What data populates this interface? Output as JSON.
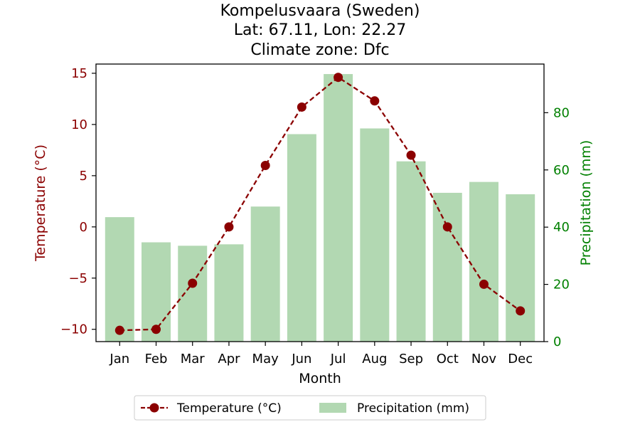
{
  "chart_data": {
    "type": "bar",
    "title_lines": [
      "Kompelusvaara (Sweden)",
      "Lat: 67.11, Lon: 22.27",
      "Climate zone: Dfc"
    ],
    "xlabel": "Month",
    "categories": [
      "Jan",
      "Feb",
      "Mar",
      "Apr",
      "May",
      "Jun",
      "Jul",
      "Aug",
      "Sep",
      "Oct",
      "Nov",
      "Dec"
    ],
    "y_left": {
      "label": "Temperature (°C)",
      "ylim": [
        -11.2,
        15.9
      ],
      "ticks": [
        15,
        10,
        5,
        0,
        -5,
        -10
      ],
      "tick_labels": [
        "15",
        "10",
        "5",
        "0",
        "−5",
        "−10"
      ],
      "color": "#8b0000"
    },
    "y_right": {
      "label": "Precipitation (mm)",
      "ylim": [
        0,
        97
      ],
      "ticks": [
        0,
        20,
        40,
        60,
        80
      ],
      "tick_labels": [
        "0",
        "20",
        "40",
        "60",
        "80"
      ],
      "color": "#008000"
    },
    "series": [
      {
        "name": "Temperature (°C)",
        "type": "line",
        "axis": "left",
        "style": "dashed, circle markers",
        "color": "#8b0000",
        "values": [
          -10.1,
          -10.0,
          -5.5,
          0.0,
          6.0,
          11.7,
          14.6,
          12.3,
          7.0,
          0.0,
          -5.6,
          -8.2
        ]
      },
      {
        "name": "Precipitation (mm)",
        "type": "bar",
        "axis": "right",
        "color": "#b2d8b2",
        "values": [
          43.5,
          34.7,
          33.5,
          34.0,
          47.2,
          72.5,
          93.5,
          74.5,
          63.0,
          52.0,
          55.8,
          51.5
        ]
      }
    ],
    "legend": {
      "placement": "bottom-center, below axes",
      "entries": [
        "Temperature (°C)",
        "Precipitation (mm)"
      ]
    },
    "grid": false
  }
}
